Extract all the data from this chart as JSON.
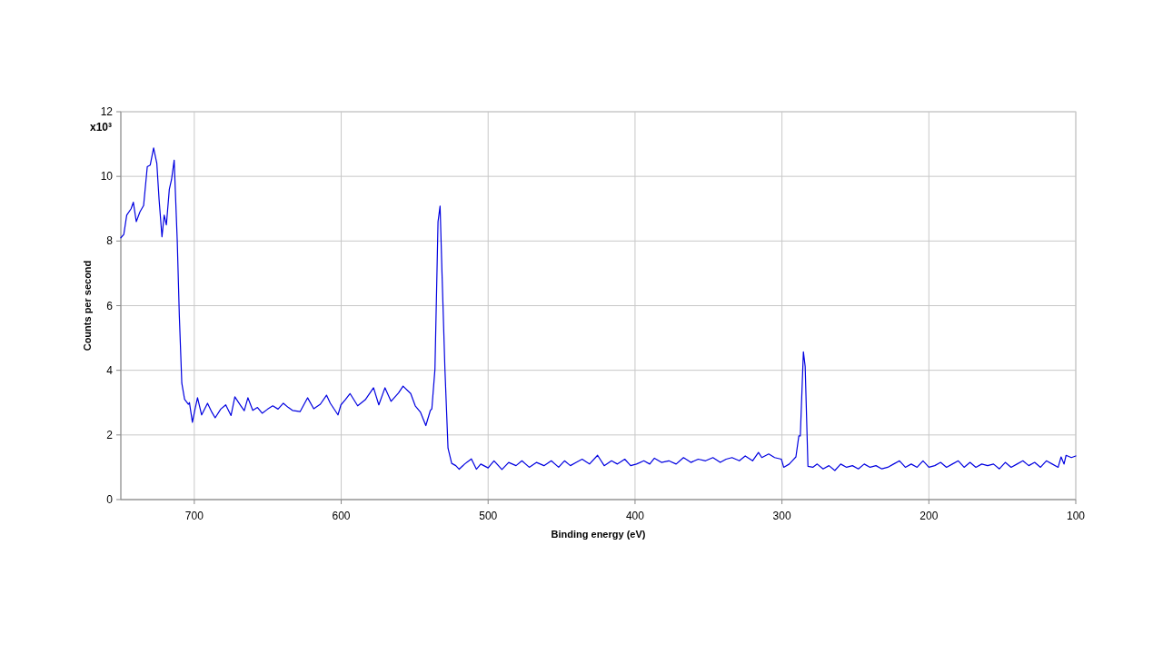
{
  "chart_data": {
    "type": "line",
    "xlabel": "Binding energy (eV)",
    "ylabel": "Counts per second",
    "annotations": [
      "x10³"
    ],
    "x": [
      750,
      748,
      746,
      743,
      741.5,
      739.5,
      737,
      734.5,
      732,
      730,
      727.7,
      725.5,
      724,
      722,
      720.5,
      719,
      717,
      715.5,
      713.7,
      711.6,
      710.2,
      708.5,
      706.6,
      704,
      703.3,
      701.3,
      699.5,
      697.8,
      695,
      691,
      688,
      685.8,
      682,
      678.6,
      675,
      672.4,
      668.3,
      666,
      663.5,
      660.2,
      657,
      653.8,
      650,
      646.6,
      643,
      639.4,
      636,
      633.2,
      628,
      622.9,
      618.7,
      614.2,
      610,
      607.4,
      602.2,
      600.2,
      597,
      594,
      588.8,
      583.6,
      578,
      574.4,
      570.2,
      566.1,
      561,
      557.9,
      552.7,
      549.6,
      546,
      542.4,
      539.3,
      538.3,
      536.2,
      534.1,
      532.7,
      531.4,
      529.4,
      527.3,
      524.8,
      522,
      519.7,
      516,
      511.4,
      508,
      505,
      500,
      496,
      490.6,
      486,
      481,
      477,
      472,
      467,
      462,
      457,
      452,
      448,
      444,
      440,
      436,
      431,
      425.5,
      421,
      416,
      412,
      407,
      403,
      399,
      394,
      390,
      386.8,
      382,
      377,
      372,
      367,
      362,
      357,
      352,
      347,
      342,
      338,
      334,
      329,
      325,
      320,
      316,
      313.7,
      309,
      305,
      300.4,
      298.8,
      295,
      293,
      290.5,
      288.5,
      287.5,
      285.4,
      284.2,
      282.3,
      279,
      276,
      272,
      268,
      264,
      260,
      256,
      252,
      248,
      244,
      240,
      236,
      232,
      228,
      224,
      220,
      216,
      212,
      208,
      204,
      200,
      196,
      192,
      188,
      184,
      180,
      176,
      172,
      168,
      164,
      160,
      156,
      152,
      148,
      144,
      140,
      136,
      132,
      128,
      124,
      120,
      116,
      112,
      110,
      108,
      106.6,
      103,
      100
    ],
    "series": [
      {
        "color": "#0000e0",
        "values": [
          8.1,
          8.2,
          8.8,
          9.0,
          9.2,
          8.6,
          8.9,
          9.1,
          10.3,
          10.35,
          10.88,
          10.4,
          9.3,
          8.13,
          8.8,
          8.5,
          9.6,
          9.9,
          10.5,
          8.0,
          5.7,
          3.6,
          3.1,
          2.95,
          3.0,
          2.39,
          2.8,
          3.15,
          2.62,
          2.98,
          2.7,
          2.53,
          2.8,
          2.93,
          2.6,
          3.18,
          2.9,
          2.75,
          3.15,
          2.76,
          2.85,
          2.67,
          2.8,
          2.9,
          2.8,
          2.98,
          2.85,
          2.76,
          2.72,
          3.15,
          2.81,
          2.95,
          3.23,
          2.98,
          2.62,
          2.93,
          3.1,
          3.28,
          2.9,
          3.09,
          3.46,
          2.93,
          3.46,
          3.04,
          3.3,
          3.51,
          3.28,
          2.9,
          2.7,
          2.29,
          2.76,
          2.81,
          4.03,
          8.6,
          9.08,
          7.02,
          4.03,
          1.59,
          1.12,
          1.05,
          0.94,
          1.1,
          1.26,
          0.94,
          1.1,
          0.98,
          1.2,
          0.93,
          1.15,
          1.05,
          1.2,
          1.0,
          1.15,
          1.05,
          1.2,
          1.0,
          1.2,
          1.05,
          1.15,
          1.25,
          1.1,
          1.37,
          1.05,
          1.2,
          1.1,
          1.25,
          1.05,
          1.1,
          1.2,
          1.1,
          1.28,
          1.15,
          1.2,
          1.1,
          1.3,
          1.15,
          1.25,
          1.2,
          1.3,
          1.15,
          1.25,
          1.3,
          1.2,
          1.35,
          1.2,
          1.46,
          1.3,
          1.41,
          1.3,
          1.25,
          1.0,
          1.1,
          1.2,
          1.32,
          1.97,
          1.97,
          4.57,
          4.12,
          1.03,
          1.0,
          1.1,
          0.95,
          1.05,
          0.9,
          1.1,
          1.0,
          1.05,
          0.95,
          1.1,
          1.0,
          1.05,
          0.95,
          1.0,
          1.1,
          1.2,
          1.0,
          1.1,
          1.0,
          1.2,
          1.0,
          1.05,
          1.15,
          1.0,
          1.1,
          1.2,
          1.0,
          1.15,
          1.0,
          1.1,
          1.05,
          1.1,
          0.95,
          1.15,
          1.0,
          1.1,
          1.2,
          1.05,
          1.15,
          1.0,
          1.2,
          1.1,
          1.0,
          1.32,
          1.1,
          1.37,
          1.3,
          1.35
        ]
      }
    ],
    "xlim": [
      750,
      100
    ],
    "xticks": [
      700,
      600,
      500,
      400,
      300,
      200,
      100
    ],
    "ylim": [
      0,
      12
    ],
    "yticks": [
      0,
      2,
      4,
      6,
      8,
      10,
      12
    ],
    "grid": true,
    "marker": "none",
    "line_style": "solid"
  }
}
